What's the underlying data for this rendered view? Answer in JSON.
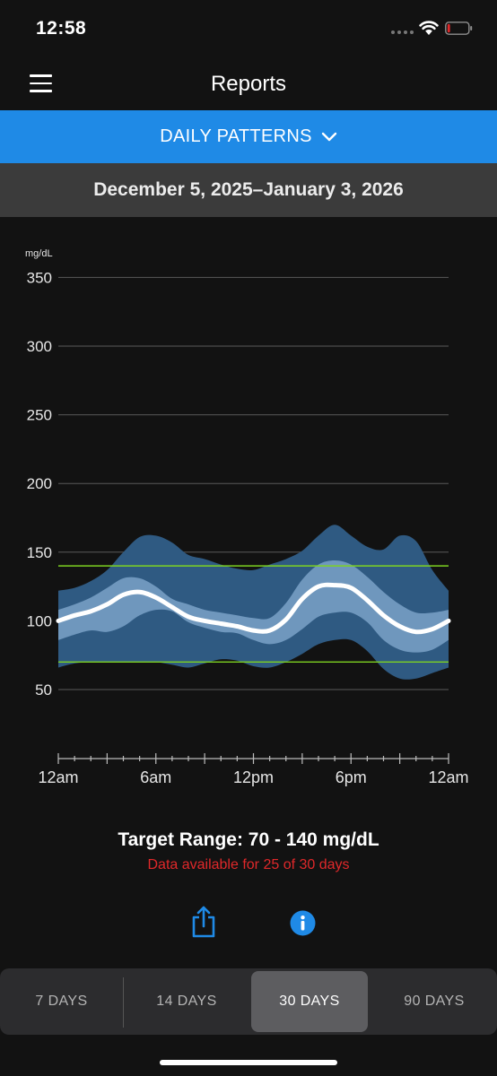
{
  "status_bar": {
    "time": "12:58",
    "battery_level": 0.08,
    "battery_color": "#e0282a"
  },
  "header": {
    "title": "Reports",
    "menu_icon": "hamburger-menu-icon"
  },
  "report_selector": {
    "label": "DAILY PATTERNS",
    "icon": "chevron-down-icon",
    "background": "#1f8ae6"
  },
  "date_range": "December 5, 2025–January 3, 2026",
  "chart_data": {
    "type": "area",
    "ylabel": "mg/dL",
    "ylim": [
      30,
      350
    ],
    "yticks": [
      50,
      100,
      150,
      200,
      250,
      300,
      350
    ],
    "xlim": [
      0,
      24
    ],
    "xticks": [
      {
        "value": 0,
        "label": "12am"
      },
      {
        "value": 6,
        "label": "6am"
      },
      {
        "value": 12,
        "label": "12pm"
      },
      {
        "value": 18,
        "label": "6pm"
      },
      {
        "value": 24,
        "label": "12am"
      }
    ],
    "grid": true,
    "target_range": {
      "low": 70,
      "high": 140,
      "color": "#7ed321"
    },
    "x": [
      0,
      1,
      2,
      3,
      4,
      5,
      6,
      7,
      8,
      9,
      10,
      11,
      12,
      13,
      14,
      15,
      16,
      17,
      18,
      19,
      20,
      21,
      22,
      23,
      24
    ],
    "series": [
      {
        "role": "outer_band",
        "color": "#2f5a82",
        "upper": [
          122,
          124,
          129,
          137,
          150,
          161,
          162,
          157,
          148,
          145,
          141,
          138,
          137,
          141,
          145,
          151,
          162,
          170,
          162,
          154,
          152,
          162,
          158,
          137,
          122
        ],
        "lower": [
          66,
          69,
          70,
          70,
          70,
          70,
          70,
          68,
          66,
          69,
          72,
          71,
          67,
          66,
          70,
          76,
          83,
          86,
          86,
          78,
          65,
          58,
          58,
          62,
          66
        ]
      },
      {
        "role": "inner_band",
        "color": "#6f97bd",
        "upper": [
          108,
          112,
          117,
          124,
          131,
          131,
          125,
          116,
          112,
          108,
          106,
          104,
          102,
          102,
          113,
          130,
          141,
          144,
          141,
          132,
          121,
          112,
          106,
          106,
          108
        ],
        "lower": [
          86,
          90,
          93,
          92,
          96,
          104,
          108,
          107,
          99,
          95,
          92,
          91,
          86,
          83,
          86,
          94,
          103,
          106,
          106,
          99,
          86,
          79,
          77,
          79,
          86
        ]
      },
      {
        "role": "median",
        "color": "#ffffff",
        "values": [
          100,
          104,
          107,
          112,
          119,
          121,
          117,
          110,
          103,
          100,
          98,
          96,
          93,
          93,
          101,
          116,
          125,
          126,
          124,
          115,
          104,
          96,
          92,
          94,
          100
        ]
      }
    ]
  },
  "target_range_text": "Target Range: 70 - 140 mg/dL",
  "data_availability_text": "Data available for 25 of 30 days",
  "actions": {
    "share_icon": "share-icon",
    "info_icon": "info-icon",
    "icon_color": "#1f8ae6"
  },
  "period_selector": {
    "options": [
      "7 DAYS",
      "14 DAYS",
      "30 DAYS",
      "90 DAYS"
    ],
    "selected": "30 DAYS"
  }
}
